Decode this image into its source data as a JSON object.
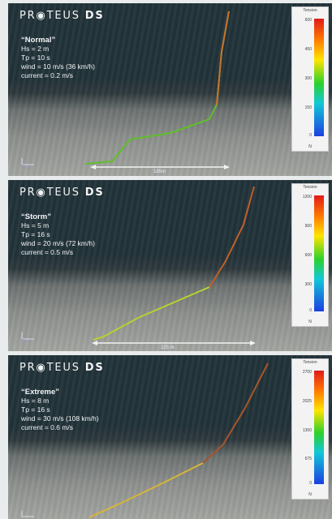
{
  "brand": {
    "pro": "PR",
    "teus": "TEUS",
    "ds": "DS"
  },
  "panels": [
    {
      "title": "“Normal”",
      "lines": [
        "Hs = 2 m",
        "Tp = 10 s",
        "wind = 10 m/s (36 km/h)",
        "current = 0.2 m/s"
      ],
      "scale_label": "185m",
      "legend": {
        "title": "Tension",
        "unit": "N",
        "ticks": [
          "600",
          "450",
          "300",
          "150",
          "0"
        ]
      }
    },
    {
      "title": "“Storm”",
      "lines": [
        "Hs = 5 m",
        "Tp = 16 s",
        "wind = 20 m/s (72 km/h)",
        "current = 0.5 m/s"
      ],
      "scale_label": "225 m",
      "legend": {
        "title": "Tension",
        "unit": "N",
        "ticks": [
          "1200",
          "900",
          "600",
          "300",
          "0"
        ]
      }
    },
    {
      "title": "“Extreme”",
      "lines": [
        "Hs = 8 m",
        "Tp = 16 s",
        "wind = 30 m/s (108 km/h)",
        "current = 0.6 m/s"
      ],
      "scale_label": "",
      "legend": {
        "title": "Tension",
        "unit": "N",
        "ticks": [
          "2700",
          "2025",
          "1350",
          "675",
          "0"
        ]
      }
    }
  ],
  "colors": {
    "seabed": "#8d908d",
    "water": "#22333a",
    "text": "#f4f6f6"
  }
}
